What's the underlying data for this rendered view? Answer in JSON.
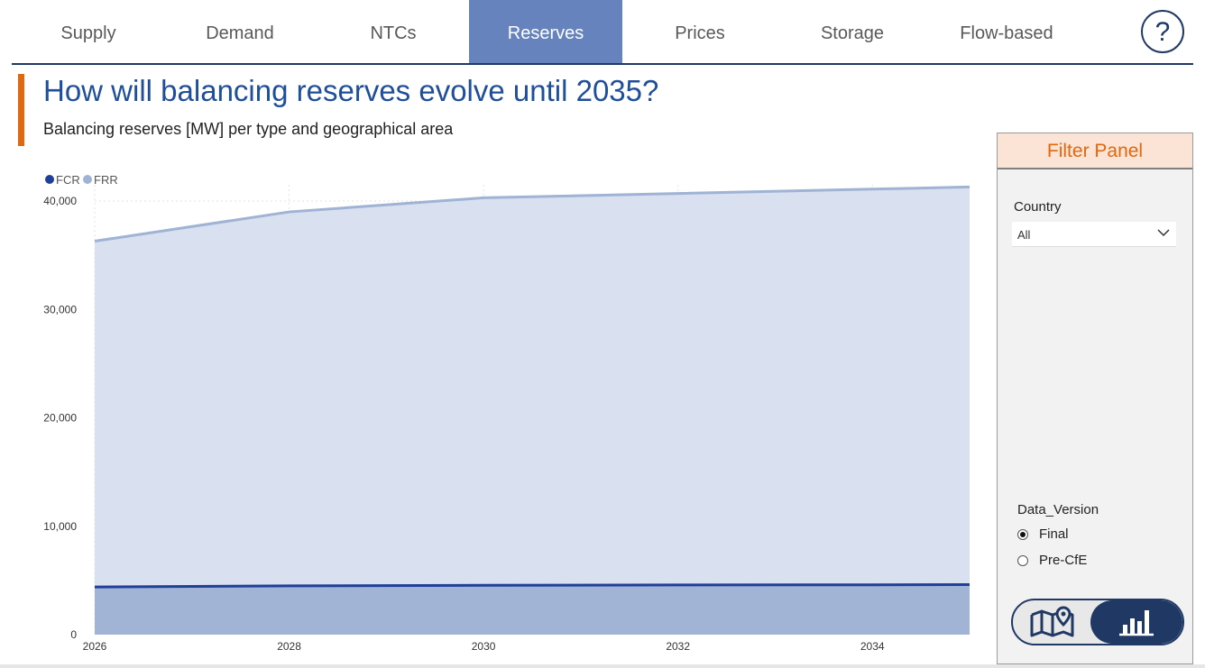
{
  "nav": {
    "tabs": [
      {
        "label": "Supply",
        "active": false
      },
      {
        "label": "Demand",
        "active": false
      },
      {
        "label": "NTCs",
        "active": false
      },
      {
        "label": "Reserves",
        "active": true
      },
      {
        "label": "Prices",
        "active": false
      },
      {
        "label": "Storage",
        "active": false
      },
      {
        "label": "Flow-based",
        "active": false
      }
    ],
    "help_label": "?",
    "help_icon": "question-mark-icon"
  },
  "header": {
    "title": "How will balancing reserves evolve until 2035?",
    "subtitle": "Balancing reserves [MW] per type and geographical area"
  },
  "chart_data": {
    "type": "area",
    "x": [
      2026,
      2028,
      2030,
      2032,
      2034,
      2035
    ],
    "x_ticks": [
      "2026",
      "2028",
      "2030",
      "2032",
      "2034"
    ],
    "y_ticks": [
      "0",
      "10,000",
      "20,000",
      "30,000",
      "40,000"
    ],
    "ylim": [
      0,
      41500
    ],
    "xlim": [
      2026,
      2035
    ],
    "stacked": false,
    "grid": true,
    "legend_position": "top-left",
    "series": [
      {
        "name": "FCR",
        "values": [
          4400,
          4500,
          4550,
          4580,
          4600,
          4620
        ],
        "color": "#1f3f99",
        "fill": "#a2b4d6"
      },
      {
        "name": "FRR",
        "values": [
          36300,
          39000,
          40300,
          40700,
          41100,
          41300
        ],
        "color": "#9fb3d5",
        "fill": "#d9e0ef"
      }
    ]
  },
  "filter_panel": {
    "title": "Filter Panel",
    "country": {
      "label": "Country",
      "value": "All"
    },
    "data_version": {
      "label": "Data_Version",
      "options": [
        {
          "label": "Final",
          "selected": true
        },
        {
          "label": "Pre-CfE",
          "selected": false
        }
      ]
    },
    "view_toggle": {
      "left_icon": "map-pin-icon",
      "right_icon": "bar-chart-icon",
      "active": "right"
    }
  },
  "colors": {
    "accent": "#e0680f",
    "nav_active": "#6783bd",
    "primary": "#1f3864",
    "title": "#1f4e9a"
  }
}
